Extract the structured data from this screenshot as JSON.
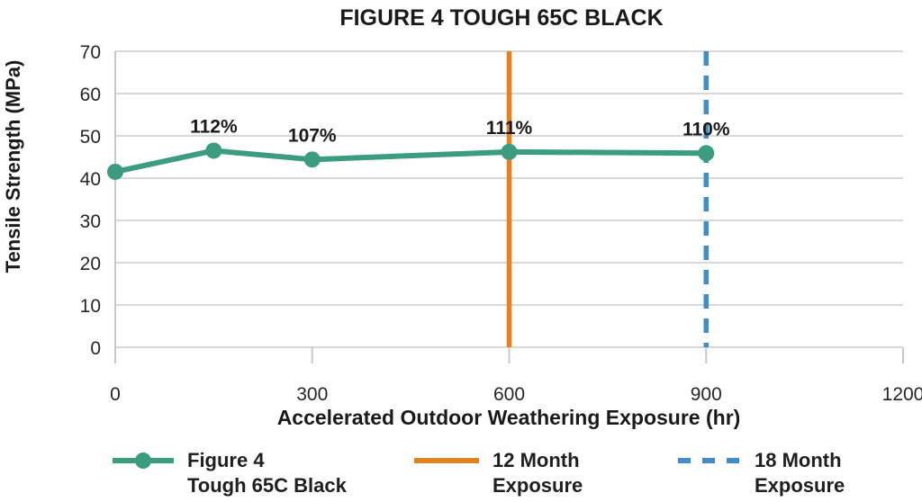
{
  "title": "FIGURE 4 TOUGH 65C BLACK",
  "chart_data": {
    "type": "line",
    "title": "FIGURE 4 TOUGH 65C BLACK",
    "xlabel": "Accelerated Outdoor Weathering Exposure (hr)",
    "ylabel": "Tensile Strength (MPa)",
    "xlim": [
      0,
      1200
    ],
    "ylim": [
      0,
      70
    ],
    "xticks": [
      0,
      300,
      600,
      900,
      1200
    ],
    "yticks": [
      0,
      10,
      20,
      30,
      40,
      50,
      60,
      70
    ],
    "grid": "horizontal",
    "series": [
      {
        "name": "Figure 4 Tough 65C Black",
        "color": "#3B9C7F",
        "x": [
          0,
          150,
          300,
          600,
          900
        ],
        "y": [
          41.5,
          46.5,
          44.4,
          46.2,
          45.9
        ],
        "point_labels": [
          "",
          "112%",
          "107%",
          "111%",
          "110%"
        ]
      }
    ],
    "vlines": [
      {
        "name": "12 Month Exposure",
        "x": 600,
        "color": "#E8801E",
        "style": "solid"
      },
      {
        "name": "18 Month Exposure",
        "x": 900,
        "color": "#3F8ECB",
        "style": "dashed"
      }
    ],
    "legend_position": "bottom",
    "legend": [
      {
        "label_line1": "Figure 4",
        "label_line2": "Tough 65C Black",
        "marker": "line-dot",
        "color": "#3B9C7F"
      },
      {
        "label_line1": "12 Month",
        "label_line2": "Exposure",
        "marker": "solid-line",
        "color": "#E8801E"
      },
      {
        "label_line1": "18 Month",
        "label_line2": "Exposure",
        "marker": "dashed-line",
        "color": "#3F8ECB"
      }
    ]
  },
  "colors": {
    "series_green": "#3B9C7F",
    "vline_orange": "#E8801E",
    "vline_blue": "#3F8ECB",
    "gridline": "#D8D8D8",
    "axis_line": "#C8C8C8",
    "text_dark": "#1A1A1A"
  }
}
